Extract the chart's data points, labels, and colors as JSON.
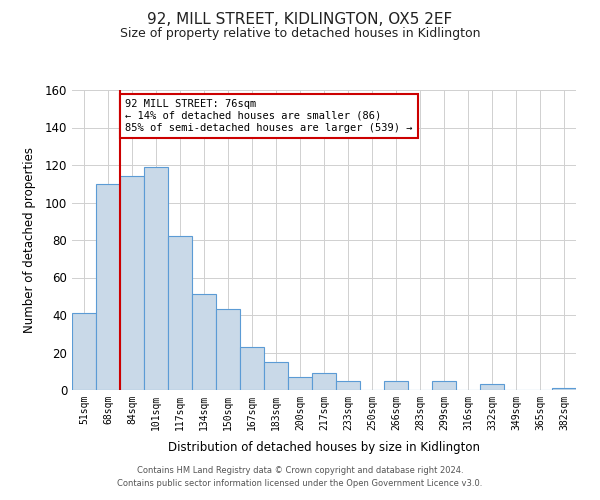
{
  "title": "92, MILL STREET, KIDLINGTON, OX5 2EF",
  "subtitle": "Size of property relative to detached houses in Kidlington",
  "xlabel": "Distribution of detached houses by size in Kidlington",
  "ylabel": "Number of detached properties",
  "categories": [
    "51sqm",
    "68sqm",
    "84sqm",
    "101sqm",
    "117sqm",
    "134sqm",
    "150sqm",
    "167sqm",
    "183sqm",
    "200sqm",
    "217sqm",
    "233sqm",
    "250sqm",
    "266sqm",
    "283sqm",
    "299sqm",
    "316sqm",
    "332sqm",
    "349sqm",
    "365sqm",
    "382sqm"
  ],
  "values": [
    41,
    110,
    114,
    119,
    82,
    51,
    43,
    23,
    15,
    7,
    9,
    5,
    0,
    5,
    0,
    5,
    0,
    3,
    0,
    0,
    1
  ],
  "bar_color": "#c9d9e8",
  "bar_edge_color": "#5b9bd5",
  "ylim": [
    0,
    160
  ],
  "yticks": [
    0,
    20,
    40,
    60,
    80,
    100,
    120,
    140,
    160
  ],
  "property_line_color": "#cc0000",
  "annotation_line1": "92 MILL STREET: 76sqm",
  "annotation_line2": "← 14% of detached houses are smaller (86)",
  "annotation_line3": "85% of semi-detached houses are larger (539) →",
  "annotation_box_color": "#cc0000",
  "footer_line1": "Contains HM Land Registry data © Crown copyright and database right 2024.",
  "footer_line2": "Contains public sector information licensed under the Open Government Licence v3.0.",
  "background_color": "#ffffff",
  "grid_color": "#d0d0d0"
}
